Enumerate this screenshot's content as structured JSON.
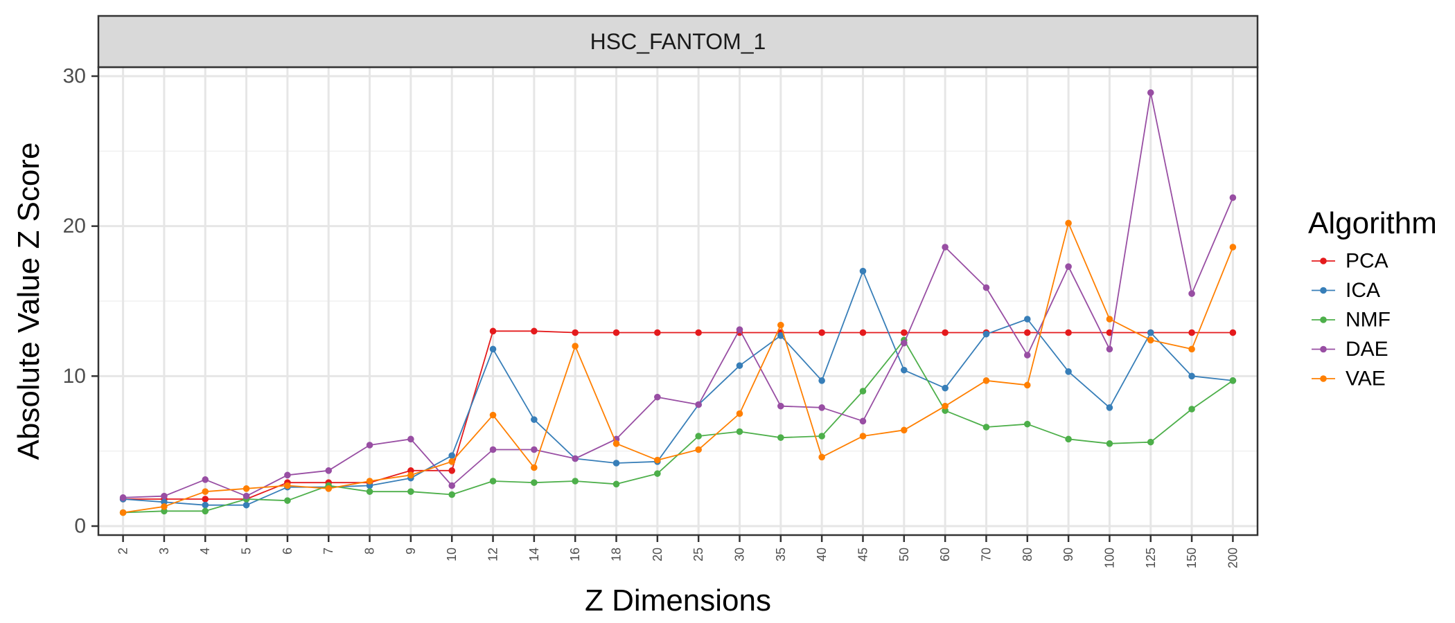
{
  "chart_data": {
    "type": "line",
    "facet_title": "HSC_FANTOM_1",
    "xlabel": "Z Dimensions",
    "ylabel": "Absolute Value Z Score",
    "categories": [
      "2",
      "3",
      "4",
      "5",
      "6",
      "7",
      "8",
      "9",
      "10",
      "12",
      "14",
      "16",
      "18",
      "20",
      "25",
      "30",
      "35",
      "40",
      "45",
      "50",
      "60",
      "70",
      "80",
      "90",
      "100",
      "125",
      "150",
      "200"
    ],
    "y_ticks": [
      0,
      10,
      20,
      30
    ],
    "ylim": [
      -0.6,
      30.6
    ],
    "grid": true,
    "legend": {
      "title": "Algorithm",
      "placement": "right"
    },
    "series": [
      {
        "name": "PCA",
        "color": "#e41a1c",
        "values": [
          1.8,
          1.8,
          1.8,
          1.8,
          2.9,
          2.9,
          2.9,
          3.7,
          3.7,
          13.0,
          13.0,
          12.9,
          12.9,
          12.9,
          12.9,
          12.9,
          12.9,
          12.9,
          12.9,
          12.9,
          12.9,
          12.9,
          12.9,
          12.9,
          12.9,
          12.9,
          12.9,
          12.9
        ]
      },
      {
        "name": "ICA",
        "color": "#377eb8",
        "values": [
          1.8,
          1.6,
          1.4,
          1.4,
          2.6,
          2.6,
          2.7,
          3.2,
          4.7,
          11.8,
          7.1,
          4.5,
          4.2,
          4.3,
          8.1,
          10.7,
          12.7,
          9.7,
          17.0,
          10.4,
          9.2,
          12.8,
          13.8,
          10.3,
          7.9,
          12.9,
          10.0,
          9.7
        ]
      },
      {
        "name": "NMF",
        "color": "#4daf4a",
        "values": [
          0.9,
          1.0,
          1.0,
          1.8,
          1.7,
          2.7,
          2.3,
          2.3,
          2.1,
          3.0,
          2.9,
          3.0,
          2.8,
          3.5,
          6.0,
          6.3,
          5.9,
          6.0,
          9.0,
          12.4,
          7.7,
          6.6,
          6.8,
          5.8,
          5.5,
          5.6,
          7.8,
          9.7
        ]
      },
      {
        "name": "DAE",
        "color": "#984ea3",
        "values": [
          1.9,
          2.0,
          3.1,
          2.0,
          3.4,
          3.7,
          5.4,
          5.8,
          2.7,
          5.1,
          5.1,
          4.5,
          5.8,
          8.6,
          8.1,
          13.1,
          8.0,
          7.9,
          7.0,
          12.2,
          18.6,
          15.9,
          11.4,
          17.3,
          11.8,
          28.9,
          15.5,
          21.9
        ]
      },
      {
        "name": "VAE",
        "color": "#ff7f00",
        "values": [
          0.9,
          1.3,
          2.3,
          2.5,
          2.7,
          2.5,
          3.0,
          3.4,
          4.3,
          7.4,
          3.9,
          12.0,
          5.5,
          4.4,
          5.1,
          7.5,
          13.4,
          4.6,
          6.0,
          6.4,
          8.0,
          9.7,
          9.4,
          20.2,
          13.8,
          12.4,
          11.8,
          18.6
        ]
      }
    ]
  }
}
